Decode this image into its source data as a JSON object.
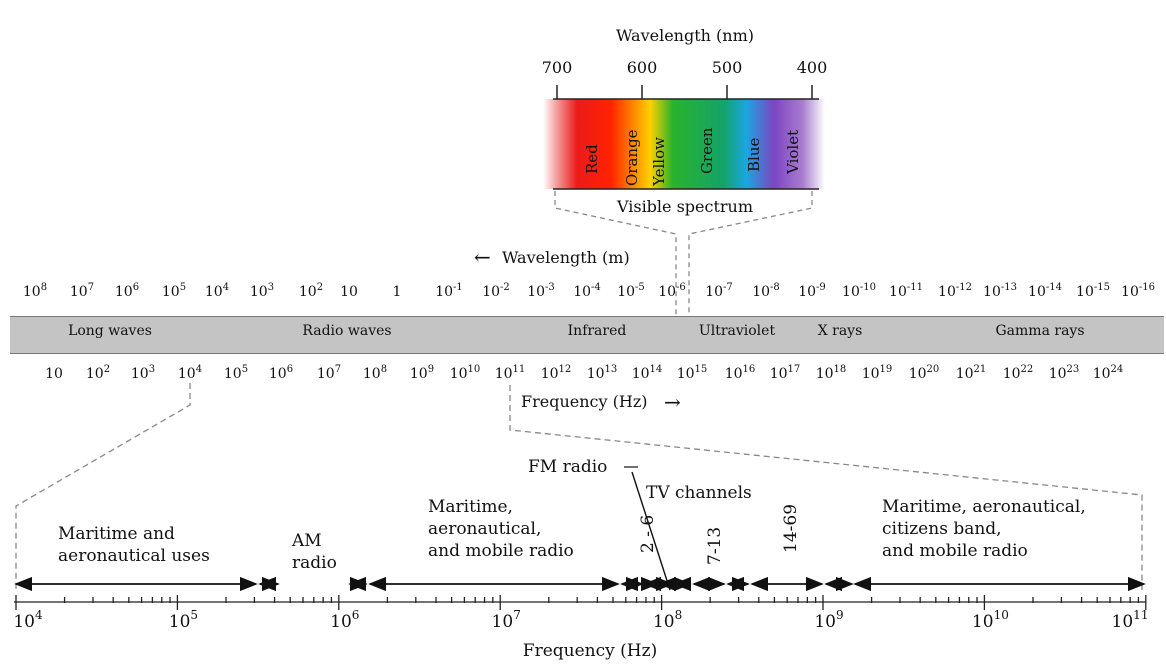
{
  "visible": {
    "title": "Wavelength (nm)",
    "scale_ticks": [
      "700",
      "600",
      "500",
      "400"
    ],
    "colors": [
      "Red",
      "Orange",
      "Yellow",
      "Green",
      "Blue",
      "Violet"
    ],
    "caption": "Visible spectrum"
  },
  "main": {
    "wavelength_label": "Wavelength (m)",
    "wavelength_arrow": "←",
    "frequency_label": "Frequency (Hz)",
    "frequency_arrow": "→",
    "wavelength_ticks": [
      {
        "b": "10",
        "e": "8"
      },
      {
        "b": "10",
        "e": "7"
      },
      {
        "b": "10",
        "e": "6"
      },
      {
        "b": "10",
        "e": "5"
      },
      {
        "b": "10",
        "e": "4"
      },
      {
        "b": "10",
        "e": "3"
      },
      {
        "b": "10",
        "e": "2"
      },
      {
        "b": "10",
        "e": ""
      },
      {
        "b": "1",
        "e": ""
      },
      {
        "b": "10",
        "e": "-1"
      },
      {
        "b": "10",
        "e": "-2"
      },
      {
        "b": "10",
        "e": "-3"
      },
      {
        "b": "10",
        "e": "-4"
      },
      {
        "b": "10",
        "e": "-5"
      },
      {
        "b": "10",
        "e": "-6"
      },
      {
        "b": "10",
        "e": "-7"
      },
      {
        "b": "10",
        "e": "-8"
      },
      {
        "b": "10",
        "e": "-9"
      },
      {
        "b": "10",
        "e": "-10"
      },
      {
        "b": "10",
        "e": "-11"
      },
      {
        "b": "10",
        "e": "-12"
      },
      {
        "b": "10",
        "e": "-13"
      },
      {
        "b": "10",
        "e": "-14"
      },
      {
        "b": "10",
        "e": "-15"
      },
      {
        "b": "10",
        "e": "-16"
      }
    ],
    "frequency_ticks": [
      {
        "b": "10",
        "e": ""
      },
      {
        "b": "10",
        "e": "2"
      },
      {
        "b": "10",
        "e": "3"
      },
      {
        "b": "10",
        "e": "4"
      },
      {
        "b": "10",
        "e": "5"
      },
      {
        "b": "10",
        "e": "6"
      },
      {
        "b": "10",
        "e": "7"
      },
      {
        "b": "10",
        "e": "8"
      },
      {
        "b": "10",
        "e": "9"
      },
      {
        "b": "10",
        "e": "10"
      },
      {
        "b": "10",
        "e": "11"
      },
      {
        "b": "10",
        "e": "12"
      },
      {
        "b": "10",
        "e": "13"
      },
      {
        "b": "10",
        "e": "14"
      },
      {
        "b": "10",
        "e": "15"
      },
      {
        "b": "10",
        "e": "16"
      },
      {
        "b": "10",
        "e": "17"
      },
      {
        "b": "10",
        "e": "18"
      },
      {
        "b": "10",
        "e": "19"
      },
      {
        "b": "10",
        "e": "20"
      },
      {
        "b": "10",
        "e": "21"
      },
      {
        "b": "10",
        "e": "22"
      },
      {
        "b": "10",
        "e": "23"
      },
      {
        "b": "10",
        "e": "24"
      }
    ],
    "regions": [
      "Long waves",
      "Radio waves",
      "Infrared",
      "Ultraviolet",
      "X rays",
      "Gamma rays"
    ]
  },
  "radio": {
    "axis_label": "Frequency (Hz)",
    "ticks": [
      {
        "b": "10",
        "e": "4"
      },
      {
        "b": "10",
        "e": "5"
      },
      {
        "b": "10",
        "e": "6"
      },
      {
        "b": "10",
        "e": "7"
      },
      {
        "b": "10",
        "e": "8"
      },
      {
        "b": "10",
        "e": "9"
      },
      {
        "b": "10",
        "e": "10"
      },
      {
        "b": "10",
        "e": "11"
      }
    ],
    "maritime_aero": [
      "Maritime and",
      "aeronautical uses"
    ],
    "am_radio": [
      "AM",
      "radio"
    ],
    "maritime_mobile": [
      "Maritime,",
      "aeronautical,",
      "and mobile radio"
    ],
    "fm_radio": "FM radio",
    "tv_channels": "TV channels",
    "ch_2_6": "2 - 6",
    "ch_7_13": "7-13",
    "ch_14_69": "14-69",
    "maritime_citizens": [
      "Maritime, aeronautical,",
      "citizens band,",
      "and mobile radio"
    ]
  }
}
